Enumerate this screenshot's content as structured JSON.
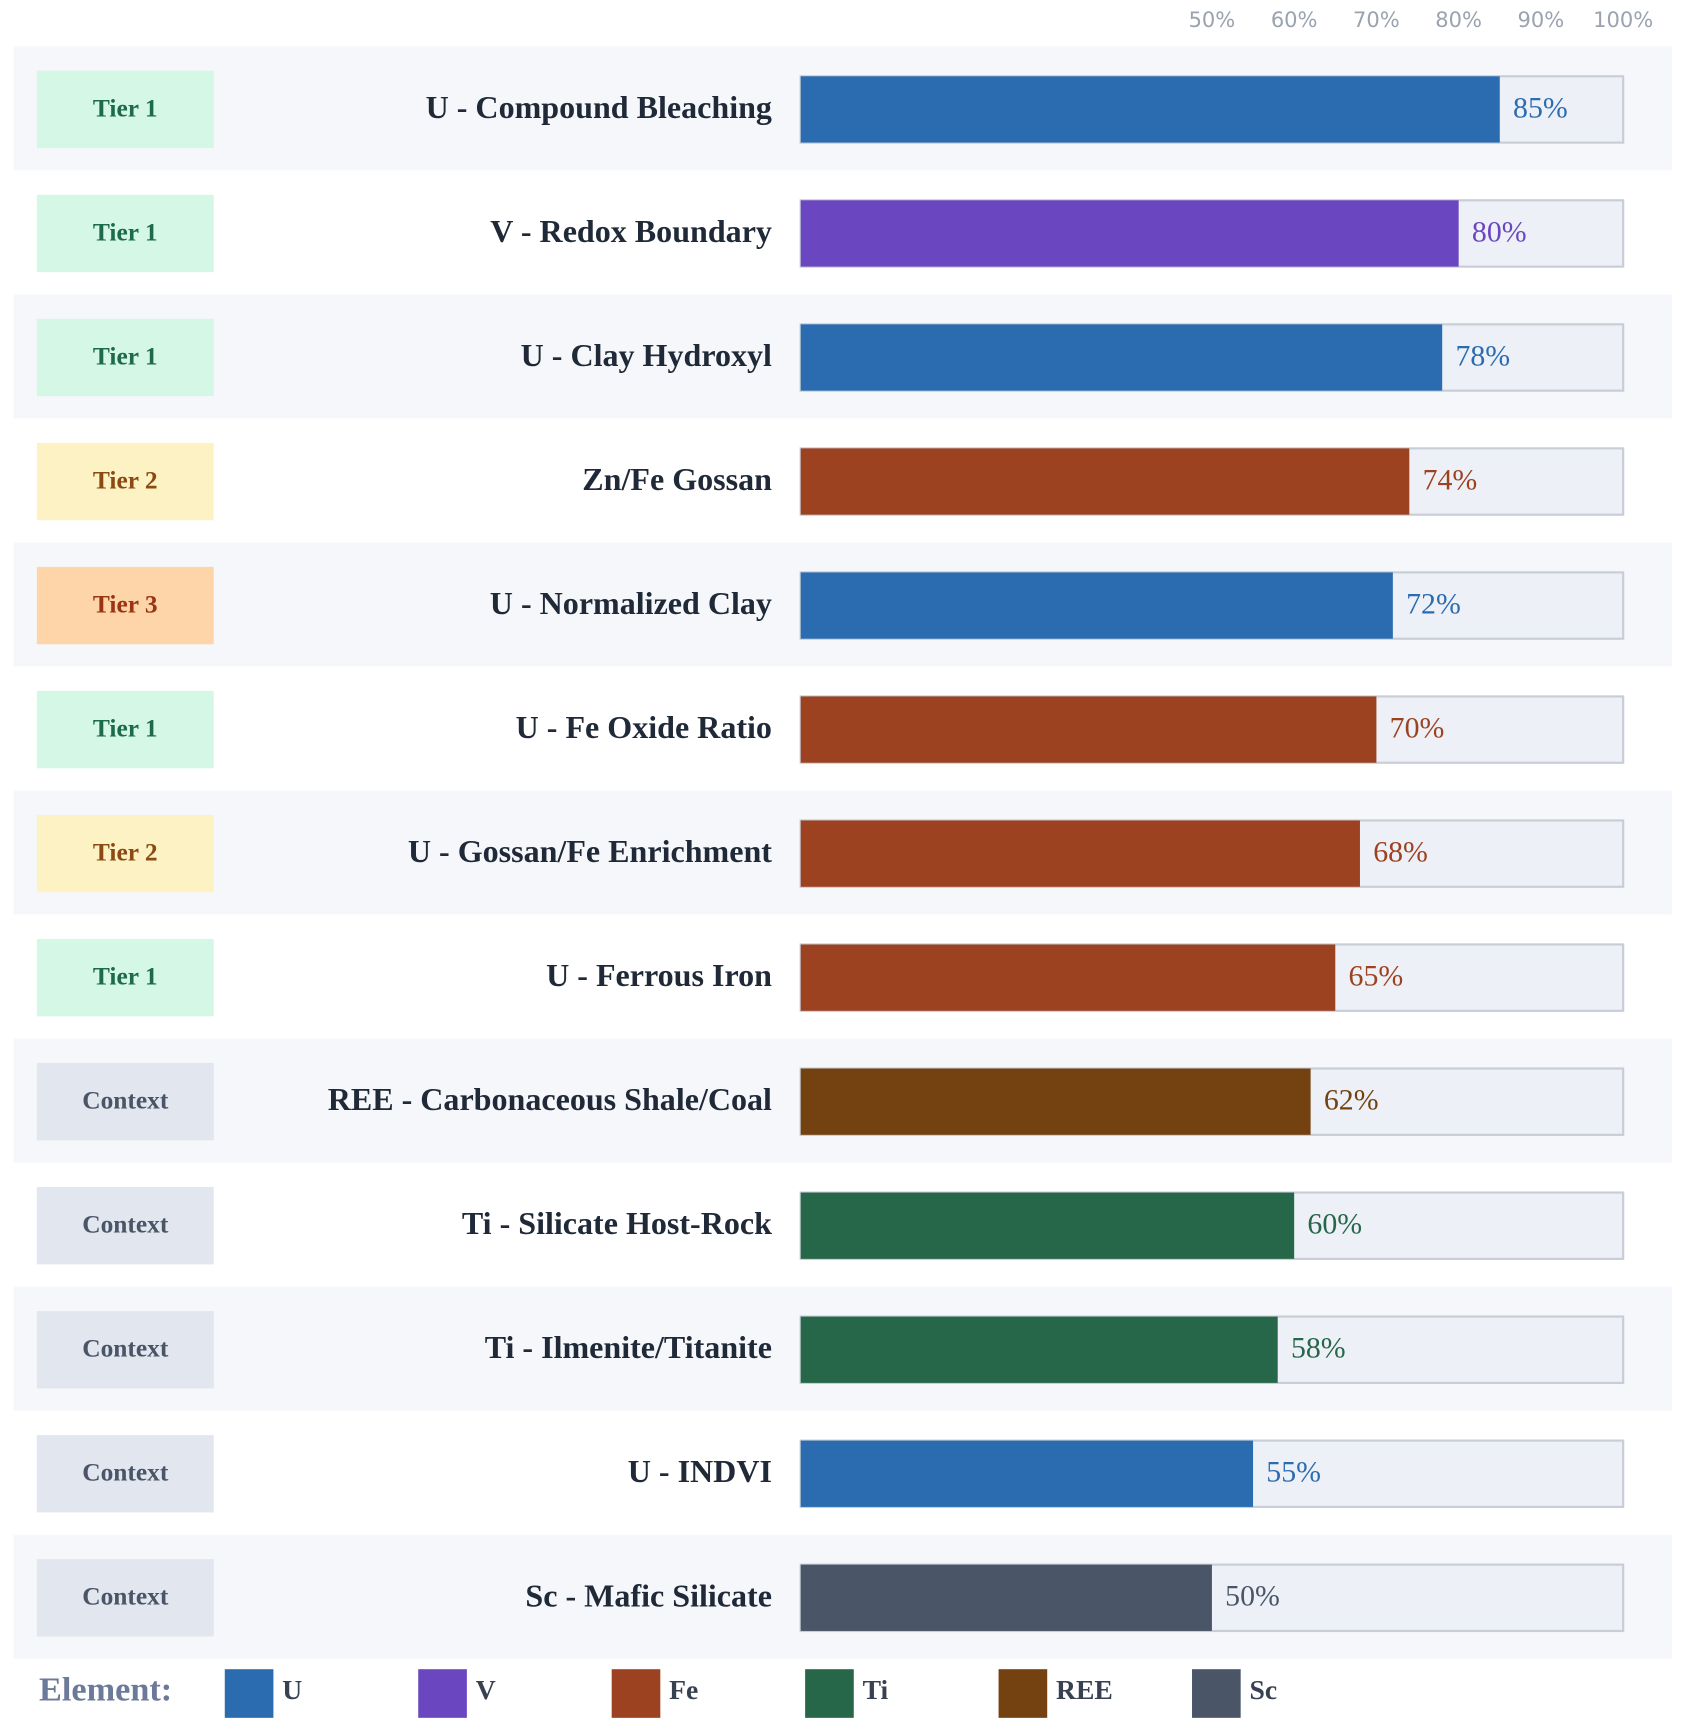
{
  "chart_data": {
    "type": "bar",
    "orientation": "horizontal",
    "categories": [
      "U - Compound Bleaching",
      "V - Redox Boundary",
      "U - Clay Hydroxyl",
      "Zn/Fe Gossan",
      "U - Normalized Clay",
      "U - Fe Oxide Ratio",
      "U - Gossan/Fe Enrichment",
      "U - Ferrous Iron",
      "REE - Carbonaceous Shale/Coal",
      "Ti - Silicate Host-Rock",
      "Ti - Ilmenite/Titanite",
      "U - INDVI",
      "Sc - Mafic Silicate"
    ],
    "values": [
      85,
      80,
      78,
      74,
      72,
      70,
      68,
      65,
      62,
      60,
      58,
      55,
      50
    ],
    "value_labels": [
      "85%",
      "80%",
      "78%",
      "74%",
      "72%",
      "70%",
      "68%",
      "65%",
      "62%",
      "60%",
      "58%",
      "55%",
      "50%"
    ],
    "colors": [
      "#2b6cb0",
      "#6b46c1",
      "#2b6cb0",
      "#9c4221",
      "#2b6cb0",
      "#9c4221",
      "#9c4221",
      "#9c4221",
      "#744210",
      "#276749",
      "#276749",
      "#2b6cb0",
      "#4a5568"
    ],
    "tiers": [
      "Tier 1",
      "Tier 1",
      "Tier 1",
      "Tier 2",
      "Tier 3",
      "Tier 1",
      "Tier 2",
      "Tier 1",
      "Context",
      "Context",
      "Context",
      "Context",
      "Context"
    ],
    "tier_colors": [
      [
        "#d4f7e6",
        "#1e6b4a"
      ],
      [
        "#d4f7e6",
        "#1e6b4a"
      ],
      [
        "#d4f7e6",
        "#1e6b4a"
      ],
      [
        "#fdf2c4",
        "#8a4a12"
      ],
      [
        "#fdd5a8",
        "#9a3412"
      ],
      [
        "#d4f7e6",
        "#1e6b4a"
      ],
      [
        "#fdf2c4",
        "#8a4a12"
      ],
      [
        "#d4f7e6",
        "#1e6b4a"
      ],
      [
        "#e2e6ee",
        "#4a5568"
      ],
      [
        "#e2e6ee",
        "#4a5568"
      ],
      [
        "#e2e6ee",
        "#4a5568"
      ],
      [
        "#e2e6ee",
        "#4a5568"
      ],
      [
        "#e2e6ee",
        "#4a5568"
      ]
    ],
    "xlim": [
      0,
      100
    ],
    "xticks": [
      {
        "value": 50,
        "label": "50%"
      },
      {
        "value": 60,
        "label": "60%"
      },
      {
        "value": 70,
        "label": "70%"
      },
      {
        "value": 80,
        "label": "80%"
      },
      {
        "value": 90,
        "label": "90%"
      },
      {
        "value": 100,
        "label": "100%"
      }
    ],
    "legend": {
      "title": "Element:",
      "items": [
        {
          "name": "U",
          "color": "#2b6cb0"
        },
        {
          "name": "V",
          "color": "#6b46c1"
        },
        {
          "name": "Fe",
          "color": "#9c4221"
        },
        {
          "name": "Ti",
          "color": "#276749"
        },
        {
          "name": "REE",
          "color": "#744210"
        },
        {
          "name": "Sc",
          "color": "#4a5568"
        }
      ]
    }
  }
}
